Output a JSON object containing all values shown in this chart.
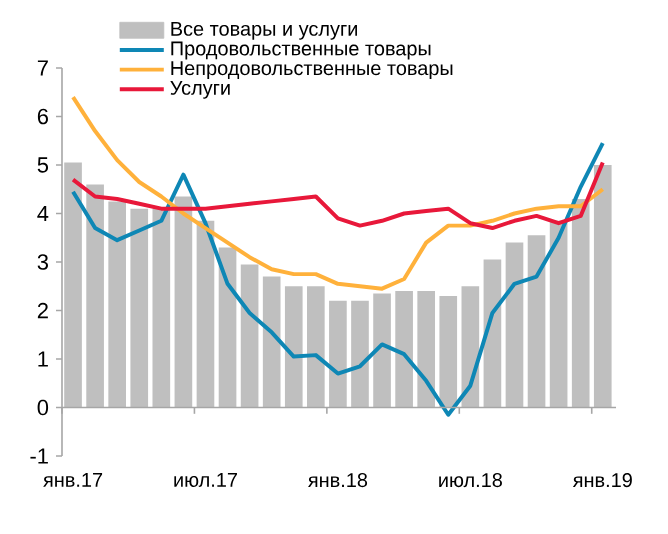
{
  "chart_data": {
    "type": "bar",
    "categories": [
      "янв.17",
      null,
      null,
      null,
      null,
      null,
      "июл.17",
      null,
      null,
      null,
      null,
      null,
      "янв.18",
      null,
      null,
      null,
      null,
      null,
      "июл.18",
      null,
      null,
      null,
      null,
      null,
      "янв.19"
    ],
    "series": [
      {
        "name": "Все товары и услуги",
        "color": "#bfbfbf",
        "values": [
          5.05,
          4.6,
          4.25,
          4.1,
          4.1,
          4.35,
          3.85,
          3.3,
          2.95,
          2.7,
          2.5,
          2.5,
          2.2,
          2.2,
          2.35,
          2.4,
          2.4,
          2.3,
          2.5,
          3.05,
          3.4,
          3.55,
          3.85,
          4.3,
          5.0
        ]
      },
      {
        "name": "Продовольственные товары",
        "type": "line",
        "color": "#0e87b5",
        "values": [
          4.45,
          3.7,
          3.45,
          3.65,
          3.85,
          4.8,
          3.8,
          2.55,
          1.95,
          1.55,
          1.05,
          1.08,
          0.7,
          0.85,
          1.3,
          1.1,
          0.55,
          -0.15,
          0.45,
          1.95,
          2.55,
          2.7,
          3.5,
          4.55,
          5.45
        ]
      },
      {
        "name": "Непродовольственные товары",
        "type": "line",
        "color": "#ffb13b",
        "values": [
          6.4,
          5.7,
          5.1,
          4.65,
          4.35,
          4.0,
          3.7,
          3.4,
          3.1,
          2.85,
          2.75,
          2.75,
          2.55,
          2.5,
          2.45,
          2.65,
          3.4,
          3.75,
          3.75,
          3.85,
          4.0,
          4.1,
          4.15,
          4.15,
          4.5
        ]
      },
      {
        "name": "Услуги",
        "type": "line",
        "color": "#e8183a",
        "values": [
          4.7,
          4.35,
          4.3,
          4.2,
          4.1,
          4.1,
          4.1,
          4.15,
          4.2,
          4.25,
          4.3,
          4.35,
          3.9,
          3.75,
          3.85,
          4.0,
          4.05,
          4.1,
          3.8,
          3.7,
          3.85,
          3.95,
          3.8,
          3.95,
          5.05
        ]
      }
    ],
    "ylim": [
      -1,
      7
    ],
    "yticks": [
      -1,
      0,
      1,
      2,
      3,
      4,
      5,
      6,
      7
    ],
    "legend": "top left"
  }
}
